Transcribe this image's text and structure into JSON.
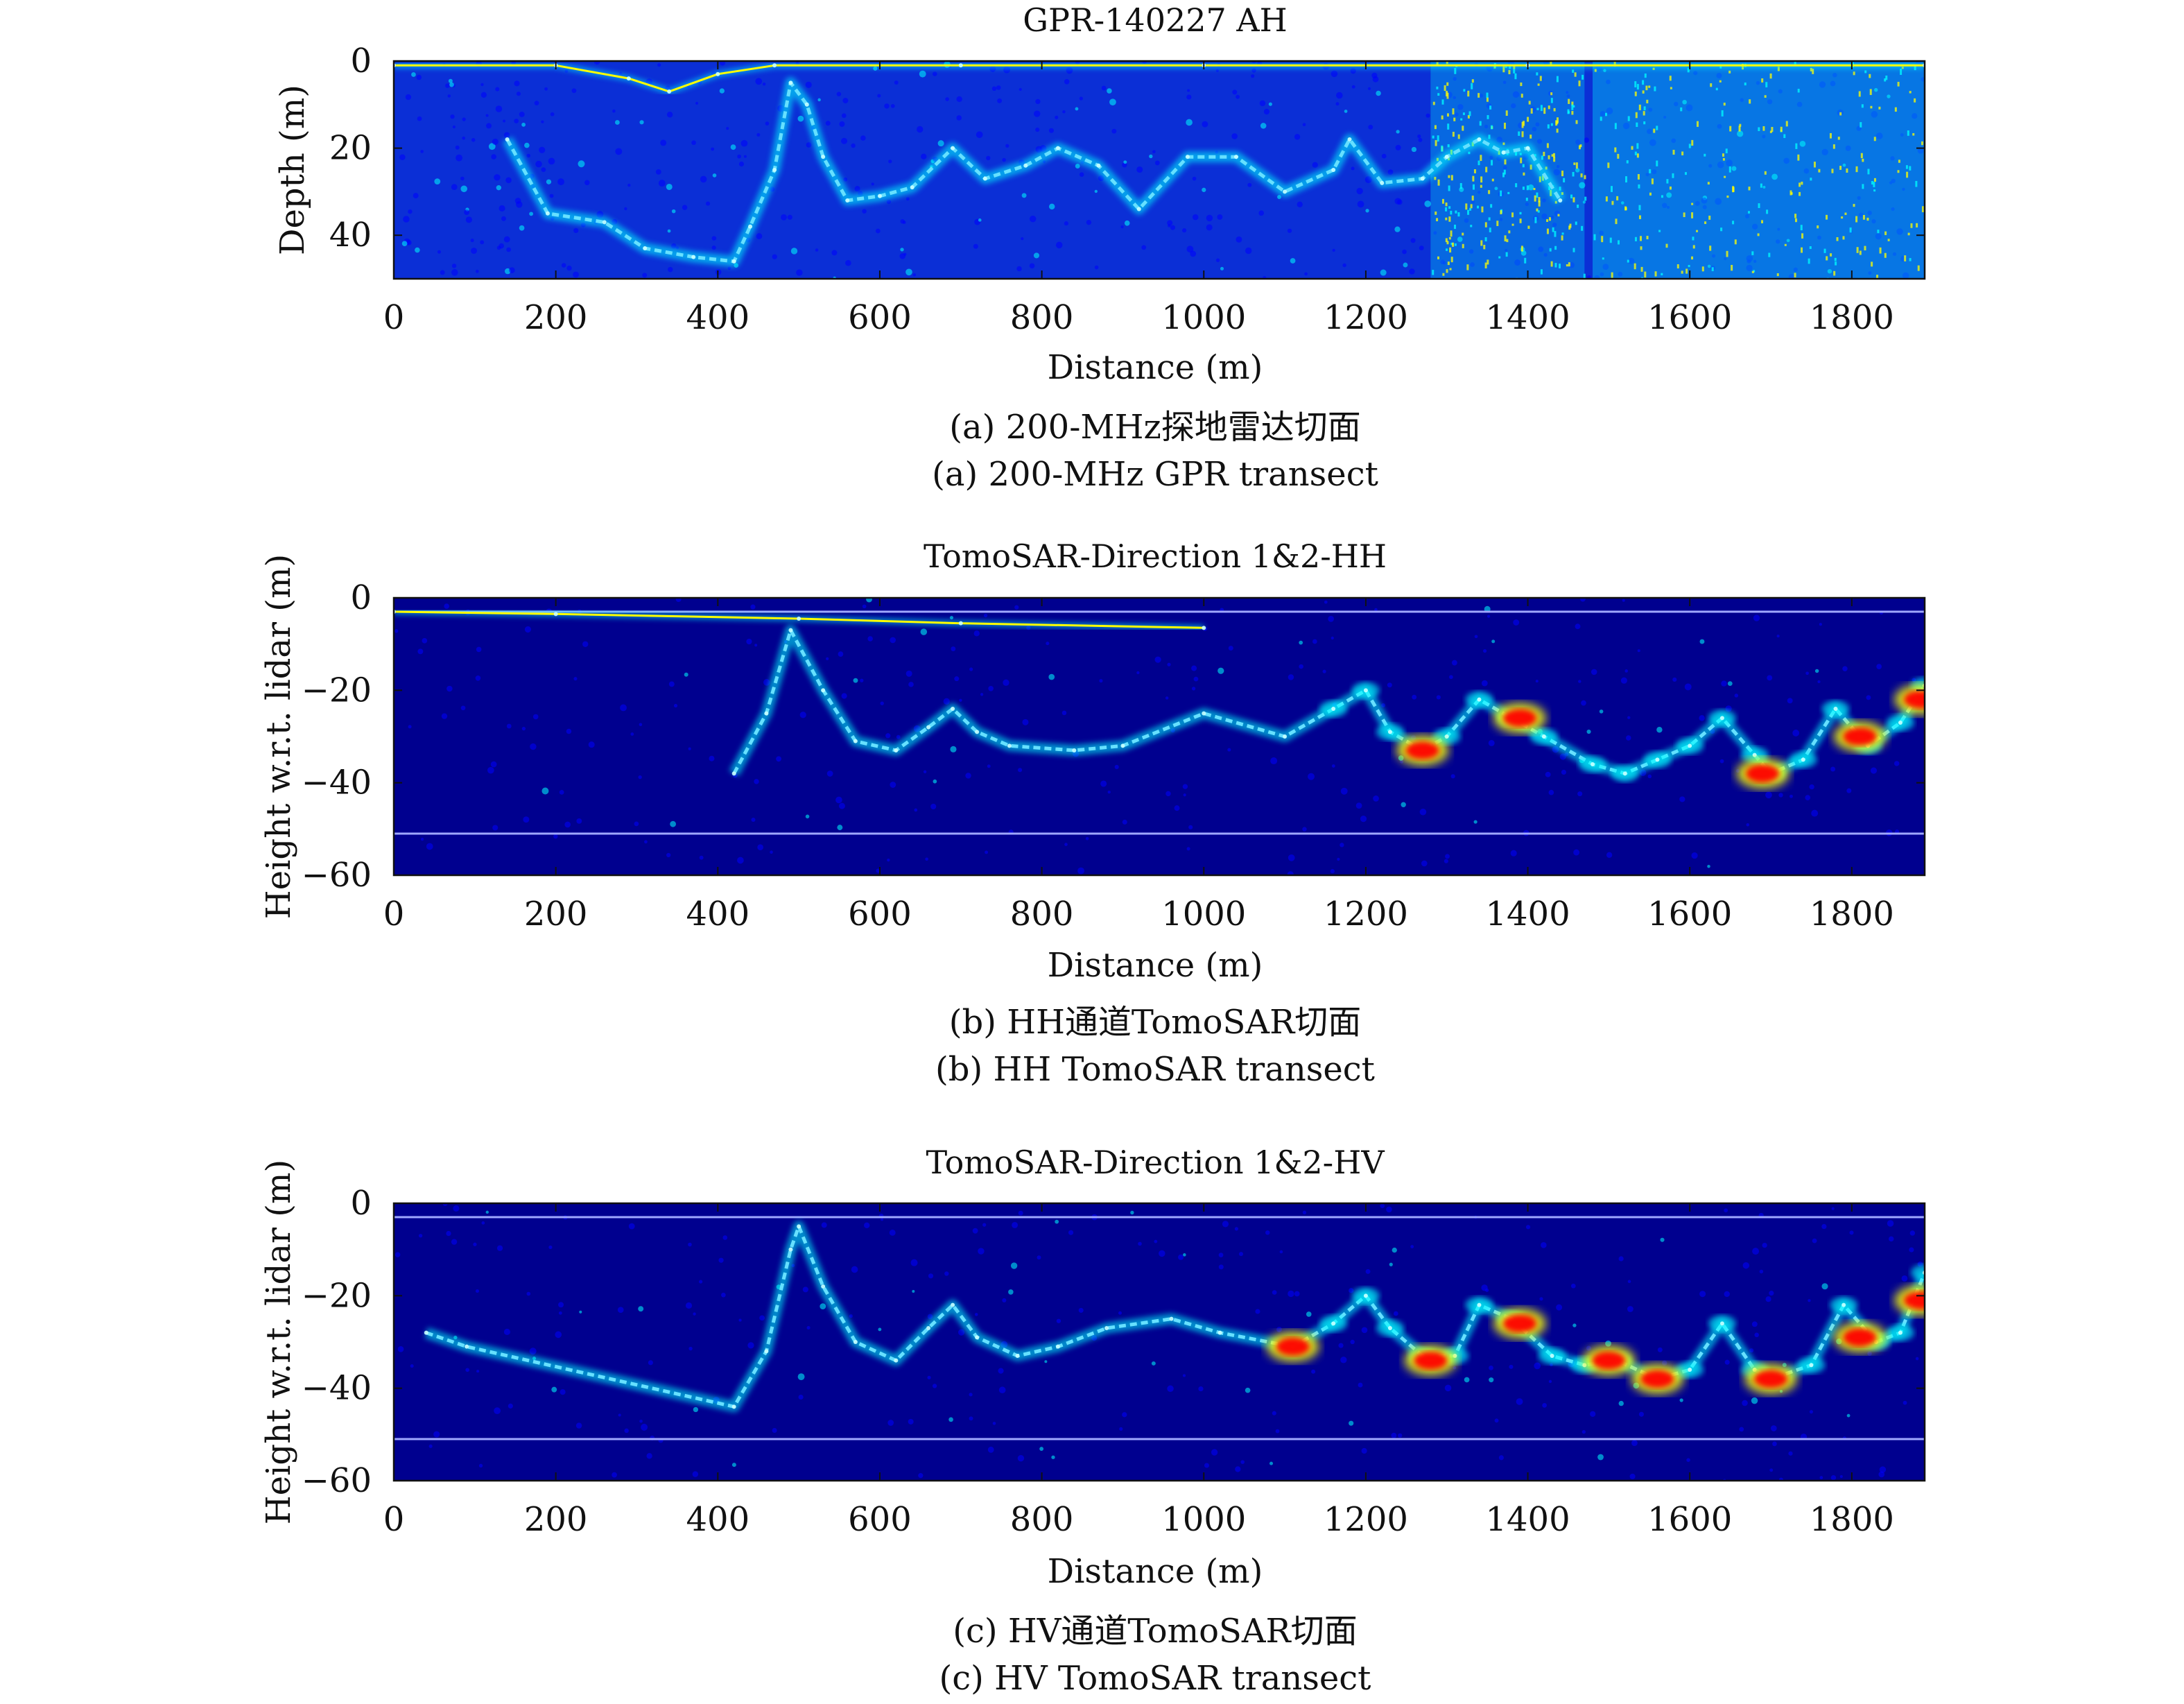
{
  "chart_data": [
    {
      "type": "heatmap",
      "title": "GPR-140227 AH",
      "xlabel": "Distance (m)",
      "ylabel": "Depth (m)",
      "xlim": [
        0,
        1890
      ],
      "ylim": [
        0,
        50
      ],
      "y_reversed": true,
      "xticks": [
        0,
        200,
        400,
        600,
        800,
        1000,
        1200,
        1400,
        1600,
        1800
      ],
      "yticks": [
        0,
        20,
        40
      ],
      "caption_cn": "(a) 200-MHz探地雷达切面",
      "caption_en": "(a) 200-MHz GPR transect",
      "colormap": [
        "#00008f",
        "#0000ff",
        "#00ffff",
        "#ffff00",
        "#ff0000",
        "#800000"
      ],
      "series": [
        {
          "role": "ice-surface reflection",
          "points": [
            [
              0,
              1
            ],
            [
              200,
              1
            ],
            [
              290,
              4
            ],
            [
              340,
              7
            ],
            [
              400,
              3
            ],
            [
              470,
              1
            ],
            [
              700,
              1
            ],
            [
              1000,
              1
            ],
            [
              1400,
              1
            ],
            [
              1890,
              1
            ]
          ]
        },
        {
          "role": "bedrock reflection",
          "points": [
            [
              140,
              18
            ],
            [
              190,
              35
            ],
            [
              260,
              37
            ],
            [
              310,
              43
            ],
            [
              370,
              45
            ],
            [
              420,
              46
            ],
            [
              440,
              38
            ],
            [
              470,
              25
            ],
            [
              490,
              5
            ],
            [
              510,
              10
            ],
            [
              530,
              22
            ],
            [
              560,
              32
            ],
            [
              600,
              31
            ],
            [
              640,
              29
            ],
            [
              690,
              20
            ],
            [
              730,
              27
            ],
            [
              780,
              24
            ],
            [
              820,
              20
            ],
            [
              870,
              24
            ],
            [
              920,
              34
            ],
            [
              980,
              22
            ],
            [
              1040,
              22
            ],
            [
              1100,
              30
            ],
            [
              1160,
              25
            ],
            [
              1180,
              18
            ],
            [
              1220,
              28
            ],
            [
              1270,
              27
            ],
            [
              1300,
              22
            ],
            [
              1340,
              18
            ],
            [
              1370,
              21
            ],
            [
              1400,
              20
            ],
            [
              1440,
              32
            ]
          ]
        }
      ],
      "noise_bands_distance_m": [
        [
          1280,
          1470
        ],
        [
          1480,
          1890
        ]
      ]
    },
    {
      "type": "heatmap",
      "title": "TomoSAR-Direction 1&2-HH",
      "xlabel": "Distance (m)",
      "ylabel": "Height w.r.t. lidar (m)",
      "xlim": [
        0,
        1890
      ],
      "ylim": [
        -60,
        0
      ],
      "xticks": [
        0,
        200,
        400,
        600,
        800,
        1000,
        1200,
        1400,
        1600,
        1800
      ],
      "yticks": [
        0,
        -20,
        -40,
        -60
      ],
      "caption_cn": "(b) HH通道TomoSAR切面",
      "caption_en": "(b) HH TomoSAR transect",
      "colormap": [
        "#00008f",
        "#0000ff",
        "#00ffff",
        "#ffff00",
        "#ff0000",
        "#800000"
      ],
      "reference_lines_m": [
        -3,
        -51
      ],
      "series": [
        {
          "role": "surface return",
          "points": [
            [
              0,
              -3
            ],
            [
              200,
              -3.5
            ],
            [
              500,
              -4.5
            ],
            [
              700,
              -5.5
            ],
            [
              1000,
              -6.5
            ]
          ]
        },
        {
          "role": "bedrock return",
          "points": [
            [
              420,
              -38
            ],
            [
              460,
              -25
            ],
            [
              490,
              -7
            ],
            [
              530,
              -20
            ],
            [
              570,
              -31
            ],
            [
              620,
              -33
            ],
            [
              660,
              -28
            ],
            [
              690,
              -24
            ],
            [
              720,
              -29
            ],
            [
              760,
              -32
            ],
            [
              840,
              -33
            ],
            [
              900,
              -32
            ],
            [
              1000,
              -25
            ],
            [
              1100,
              -30
            ],
            [
              1160,
              -24
            ],
            [
              1200,
              -20
            ],
            [
              1230,
              -29
            ],
            [
              1270,
              -33
            ],
            [
              1300,
              -30
            ],
            [
              1340,
              -22
            ],
            [
              1380,
              -26
            ],
            [
              1420,
              -30
            ],
            [
              1480,
              -36
            ],
            [
              1520,
              -38
            ],
            [
              1560,
              -35
            ],
            [
              1600,
              -32
            ],
            [
              1640,
              -26
            ],
            [
              1680,
              -34
            ],
            [
              1700,
              -38
            ],
            [
              1740,
              -35
            ],
            [
              1780,
              -24
            ],
            [
              1820,
              -32
            ],
            [
              1860,
              -27
            ],
            [
              1890,
              -19
            ]
          ]
        },
        {
          "role": "strong returns",
          "points": [
            [
              1270,
              -33
            ],
            [
              1390,
              -26
            ],
            [
              1690,
              -38
            ],
            [
              1810,
              -30
            ],
            [
              1885,
              -22
            ]
          ]
        }
      ]
    },
    {
      "type": "heatmap",
      "title": "TomoSAR-Direction 1&2-HV",
      "xlabel": "Distance (m)",
      "ylabel": "Height w.r.t. lidar (m)",
      "xlim": [
        0,
        1890
      ],
      "ylim": [
        -60,
        0
      ],
      "xticks": [
        0,
        200,
        400,
        600,
        800,
        1000,
        1200,
        1400,
        1600,
        1800
      ],
      "yticks": [
        0,
        -20,
        -40,
        -60
      ],
      "caption_cn": "(c) HV通道TomoSAR切面",
      "caption_en": "(c) HV TomoSAR transect",
      "colormap": [
        "#00008f",
        "#0000ff",
        "#00ffff",
        "#ffff00",
        "#ff0000",
        "#800000"
      ],
      "reference_lines_m": [
        -3,
        -51
      ],
      "series": [
        {
          "role": "bedrock return",
          "points": [
            [
              40,
              -28
            ],
            [
              90,
              -31
            ],
            [
              420,
              -44
            ],
            [
              460,
              -32
            ],
            [
              490,
              -10
            ],
            [
              500,
              -5
            ],
            [
              530,
              -18
            ],
            [
              570,
              -30
            ],
            [
              620,
              -34
            ],
            [
              660,
              -27
            ],
            [
              690,
              -22
            ],
            [
              720,
              -29
            ],
            [
              770,
              -33
            ],
            [
              820,
              -31
            ],
            [
              880,
              -27
            ],
            [
              960,
              -25
            ],
            [
              1020,
              -28
            ],
            [
              1110,
              -31
            ],
            [
              1160,
              -26
            ],
            [
              1200,
              -20
            ],
            [
              1230,
              -27
            ],
            [
              1270,
              -33
            ],
            [
              1310,
              -33
            ],
            [
              1340,
              -22
            ],
            [
              1380,
              -25
            ],
            [
              1430,
              -33
            ],
            [
              1470,
              -35
            ],
            [
              1510,
              -34
            ],
            [
              1560,
              -38
            ],
            [
              1600,
              -36
            ],
            [
              1640,
              -26
            ],
            [
              1680,
              -36
            ],
            [
              1700,
              -38
            ],
            [
              1750,
              -35
            ],
            [
              1790,
              -22
            ],
            [
              1830,
              -30
            ],
            [
              1860,
              -28
            ],
            [
              1890,
              -15
            ]
          ]
        },
        {
          "role": "strong returns",
          "points": [
            [
              1110,
              -31
            ],
            [
              1280,
              -34
            ],
            [
              1390,
              -26
            ],
            [
              1500,
              -34
            ],
            [
              1560,
              -38
            ],
            [
              1700,
              -38
            ],
            [
              1810,
              -29
            ],
            [
              1885,
              -21
            ]
          ]
        }
      ]
    }
  ]
}
